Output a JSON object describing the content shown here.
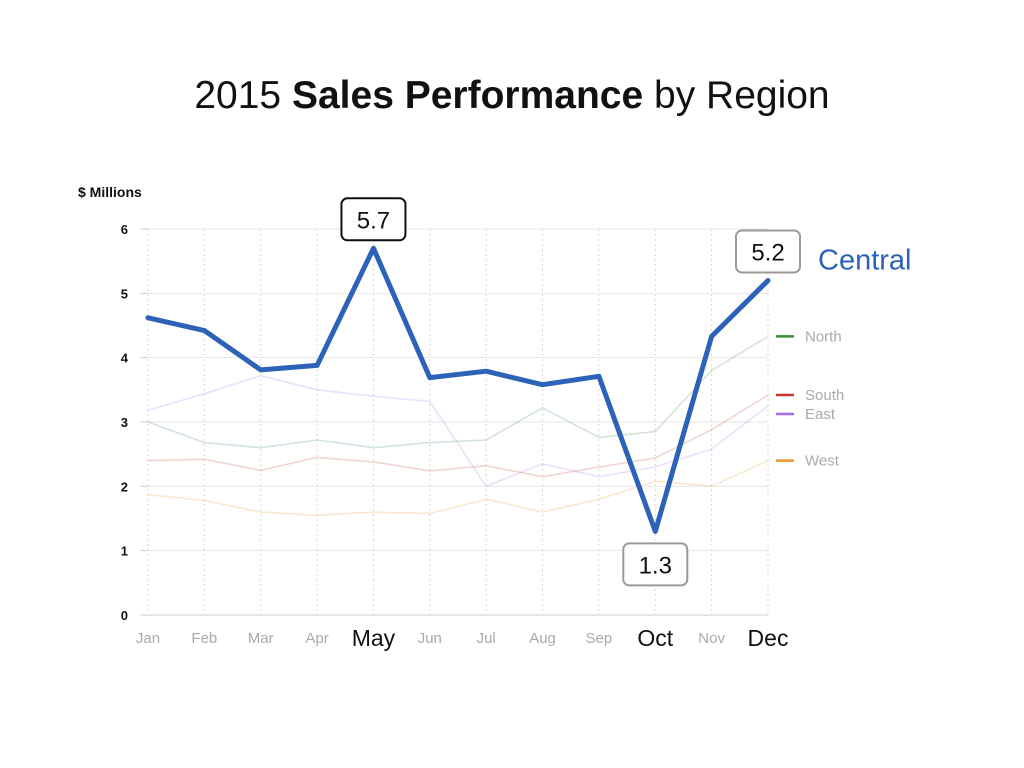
{
  "title": {
    "pre": "2015 ",
    "bold": "Sales Performance",
    "post": " by Region"
  },
  "chart_data": {
    "type": "line",
    "title": "2015 Sales Performance by Region",
    "ylabel": "$ Millions",
    "ylim": [
      0,
      6
    ],
    "yticks": [
      "0",
      "1",
      "2",
      "3",
      "4",
      "5",
      "6"
    ],
    "grid": true,
    "categories": [
      "Jan",
      "Feb",
      "Mar",
      "Apr",
      "May",
      "Jun",
      "Jul",
      "Aug",
      "Sep",
      "Oct",
      "Nov",
      "Dec"
    ],
    "highlight_categories": [
      "May",
      "Oct",
      "Dec"
    ],
    "highlight_series": "Central",
    "series": [
      {
        "name": "North",
        "color": "#3a8a3a",
        "values": [
          3.0,
          2.68,
          2.6,
          2.72,
          2.6,
          2.68,
          2.72,
          3.22,
          2.76,
          2.85,
          3.8,
          4.33
        ]
      },
      {
        "name": "South",
        "color": "#c8392b",
        "values": [
          2.4,
          2.42,
          2.25,
          2.45,
          2.38,
          2.24,
          2.32,
          2.15,
          2.3,
          2.44,
          2.88,
          3.42
        ]
      },
      {
        "name": "East",
        "color": "#a56cf0",
        "values": [
          3.18,
          3.44,
          3.72,
          3.5,
          3.4,
          3.32,
          2.0,
          2.35,
          2.15,
          2.3,
          2.58,
          3.25
        ]
      },
      {
        "name": "West",
        "color": "#e8962e",
        "values": [
          1.87,
          1.78,
          1.6,
          1.55,
          1.6,
          1.58,
          1.8,
          1.6,
          1.8,
          2.08,
          2.0,
          2.4
        ]
      },
      {
        "name": "Central",
        "color": "#2c63b8",
        "values": [
          4.62,
          4.42,
          3.81,
          3.88,
          5.7,
          3.69,
          3.79,
          3.58,
          3.71,
          1.3,
          4.33,
          5.2
        ]
      }
    ],
    "annotations": [
      {
        "category": "May",
        "label": "5.7",
        "style": "dark",
        "position": "above"
      },
      {
        "category": "Oct",
        "label": "1.3",
        "style": "light",
        "position": "below"
      },
      {
        "category": "Dec",
        "label": "5.2",
        "style": "light",
        "position": "above"
      }
    ],
    "legend": {
      "placement": "right"
    }
  }
}
